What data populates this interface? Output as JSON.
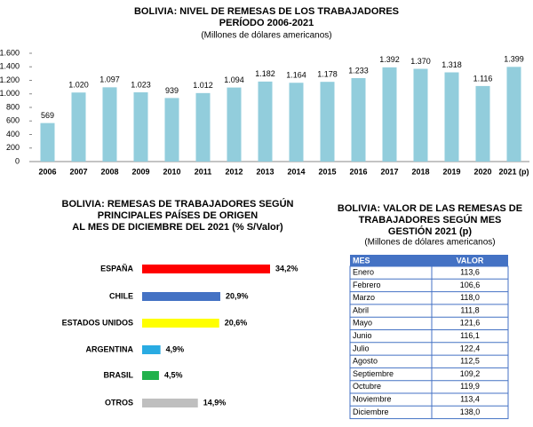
{
  "chart_data": [
    {
      "type": "bar",
      "title": "BOLIVIA: NIVEL DE REMESAS DE LOS TRABAJADORES",
      "title_line2": "PERÍODO 2006-2021",
      "subtitle": "(Millones de dólares americanos)",
      "categories": [
        "2006",
        "2007",
        "2008",
        "2009",
        "2010",
        "2011",
        "2012",
        "2013",
        "2014",
        "2015",
        "2016",
        "2017",
        "2018",
        "2019",
        "2020",
        "2021 (p)"
      ],
      "values": [
        569,
        1020,
        1097,
        1023,
        939,
        1012,
        1094,
        1182,
        1164,
        1178,
        1233,
        1392,
        1370,
        1318,
        1116,
        1399
      ],
      "value_labels": [
        "569",
        "1.020",
        "1.097",
        "1.023",
        "939",
        "1.012",
        "1.094",
        "1.182",
        "1.164",
        "1.178",
        "1.233",
        "1.392",
        "1.370",
        "1.318",
        "1.116",
        "1.399"
      ],
      "color": "#92cddc",
      "ylim": [
        0,
        1600
      ],
      "yticks": [
        0,
        200,
        400,
        600,
        800,
        {
          "value": 1000,
          "label": "1.000"
        },
        {
          "value": 1200,
          "label": "1.200"
        },
        {
          "value": 1400,
          "label": "1.400"
        },
        {
          "value": 1600,
          "label": "1.600"
        }
      ]
    },
    {
      "type": "hbar",
      "title": "BOLIVIA: REMESAS DE TRABAJADORES SEGÚN",
      "title_line2": "PRINCIPALES PAÍSES DE ORIGEN",
      "title_line3": "AL MES DE DICIEMBRE DEL 2021 (% S/Valor)",
      "categories": [
        "ESPAÑA",
        "CHILE",
        "ESTADOS UNIDOS",
        "ARGENTINA",
        "BRASIL",
        "OTROS"
      ],
      "values": [
        34.2,
        20.9,
        20.6,
        4.9,
        4.5,
        14.9
      ],
      "value_labels": [
        "34,2%",
        "20,9%",
        "20,6%",
        "4,9%",
        "4,5%",
        "14,9%"
      ],
      "colors": [
        "#ff0000",
        "#4472c4",
        "#ffff00",
        "#29abe2",
        "#22b14c",
        "#bfbfbf"
      ]
    }
  ],
  "table": {
    "title": "BOLIVIA: VALOR DE LAS REMESAS DE",
    "title_line2": "TRABAJADORES SEGÚN MES",
    "title_line3": "GESTIÓN 2021 (p)",
    "subtitle": "(Millones de dólares americanos)",
    "header": [
      "MES",
      "VALOR"
    ],
    "rows": [
      [
        "Enero",
        "113,6"
      ],
      [
        "Febrero",
        "106,6"
      ],
      [
        "Marzo",
        "118,0"
      ],
      [
        "Abril",
        "111,8"
      ],
      [
        "Mayo",
        "121,6"
      ],
      [
        "Junio",
        "116,1"
      ],
      [
        "Julio",
        "122,4"
      ],
      [
        "Agosto",
        "112,5"
      ],
      [
        "Septiembre",
        "109,2"
      ],
      [
        "Octubre",
        "119,9"
      ],
      [
        "Noviembre",
        "113,4"
      ],
      [
        "Diciembre",
        "138,0"
      ]
    ]
  }
}
